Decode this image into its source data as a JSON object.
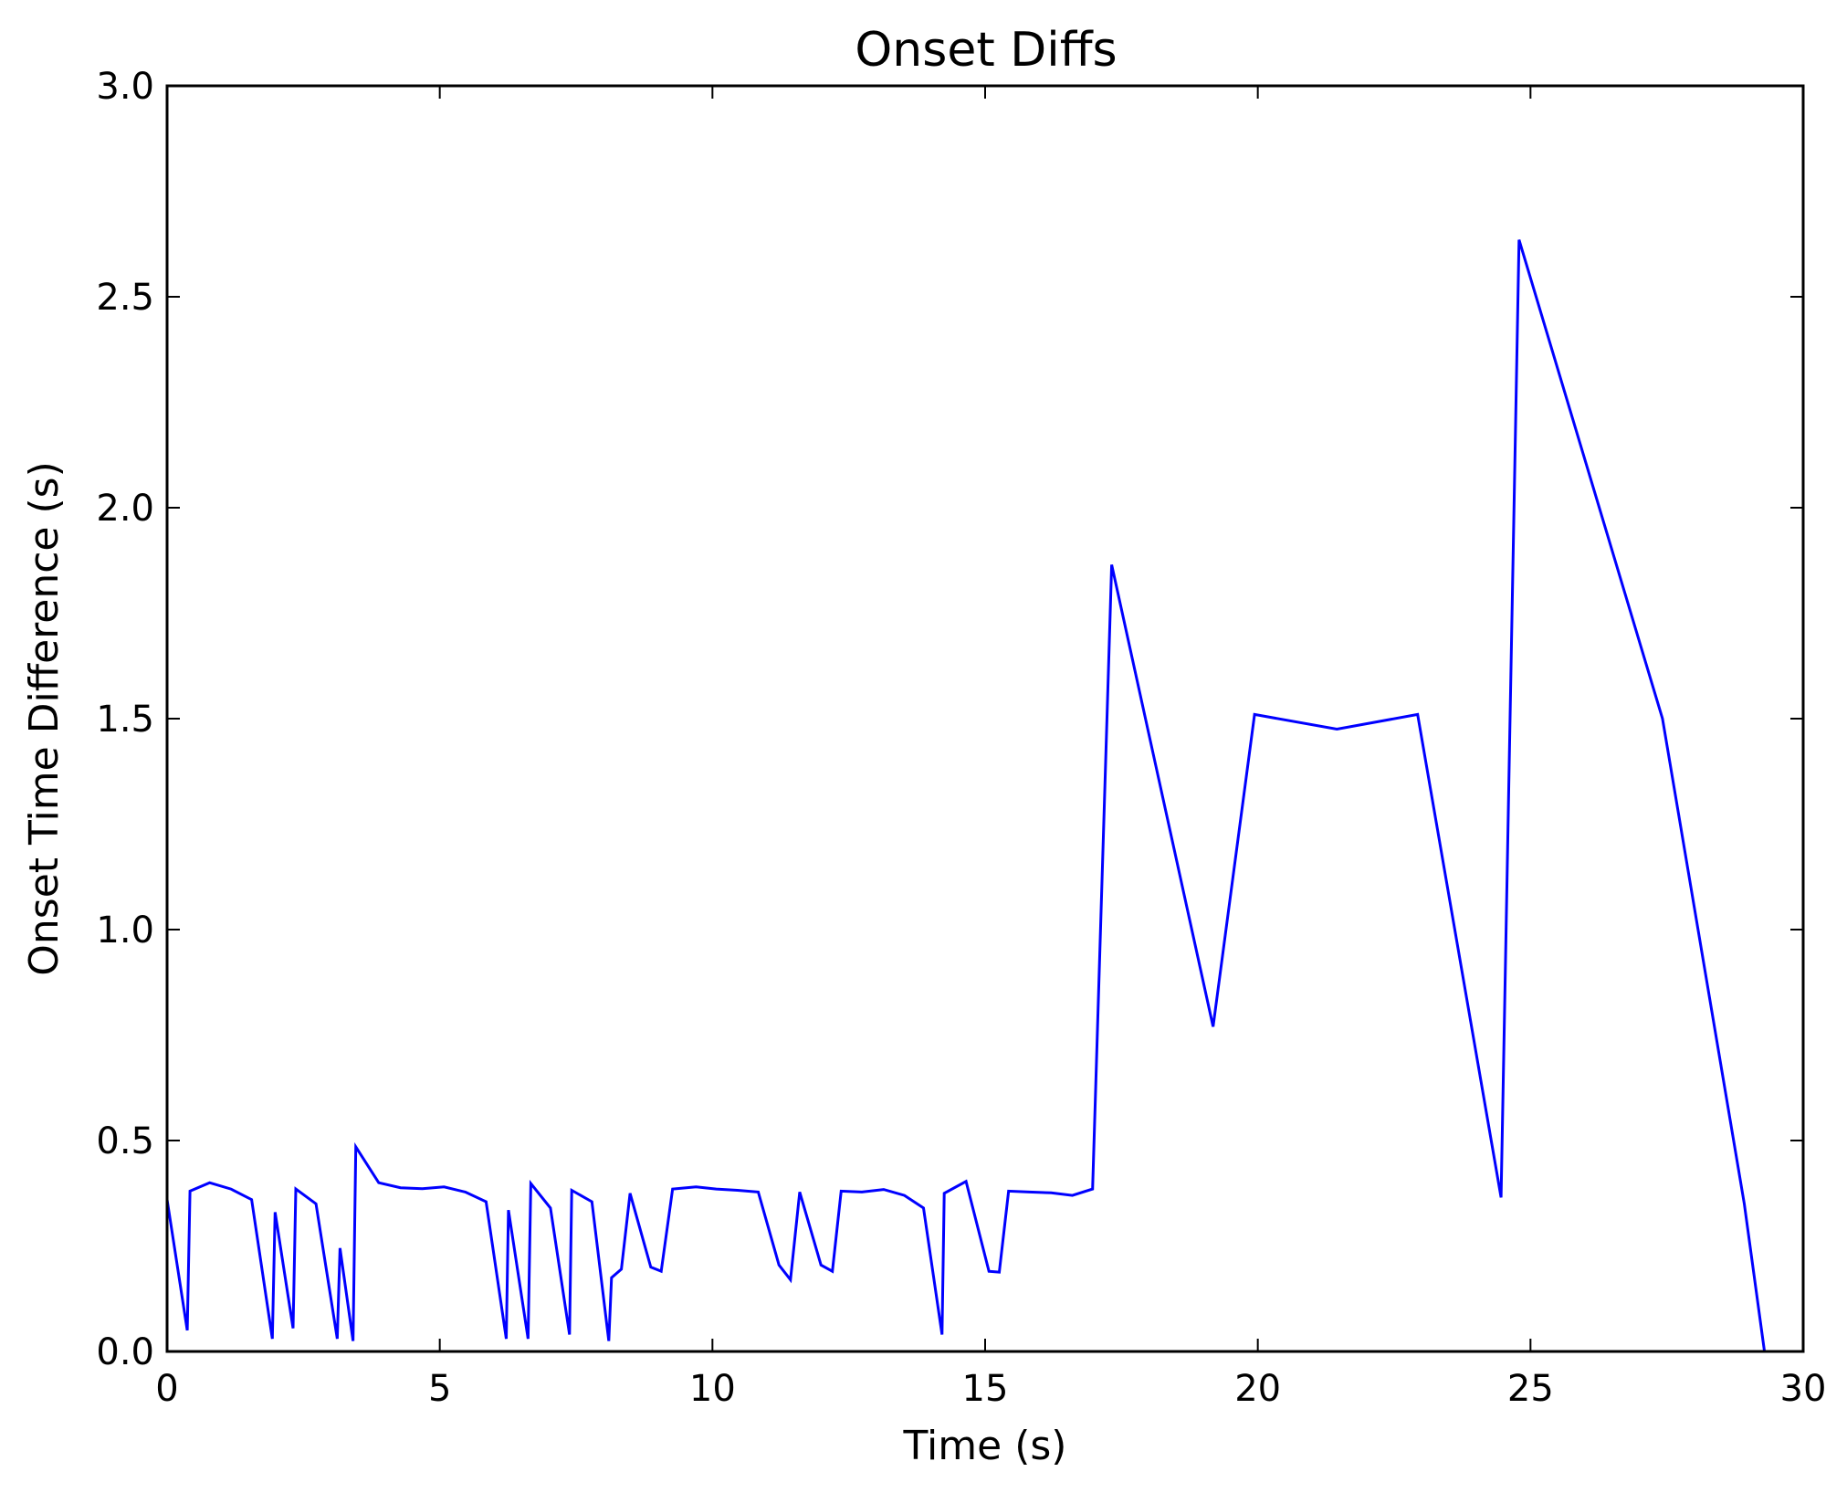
{
  "chart_data": {
    "type": "line",
    "title": "Onset Diffs",
    "xlabel": "Time (s)",
    "ylabel": "Onset Time Difference (s)",
    "xlim": [
      0,
      30
    ],
    "ylim": [
      0,
      3.0
    ],
    "x_ticks": [
      0,
      5,
      10,
      15,
      20,
      25,
      30
    ],
    "x_tick_labels": [
      "0",
      "5",
      "10",
      "15",
      "20",
      "25",
      "30"
    ],
    "y_ticks": [
      0,
      0.5,
      1.0,
      1.5,
      2.0,
      2.5,
      3.0
    ],
    "y_tick_labels": [
      "0.0",
      "0.5",
      "1.0",
      "1.5",
      "2.0",
      "2.5",
      "3.0"
    ],
    "grid": false,
    "legend": "none",
    "series": [
      {
        "color": "#0000ff",
        "x": [
          0.0,
          0.37,
          0.42,
          0.78,
          1.17,
          1.55,
          1.93,
          1.98,
          2.31,
          2.36,
          2.73,
          3.12,
          3.17,
          3.41,
          3.46,
          3.88,
          4.28,
          4.68,
          5.08,
          5.47,
          5.85,
          6.22,
          6.26,
          6.62,
          6.67,
          7.03,
          7.38,
          7.42,
          7.79,
          8.1,
          8.15,
          8.33,
          8.49,
          8.87,
          9.06,
          9.27,
          9.7,
          10.07,
          10.46,
          10.84,
          11.22,
          11.43,
          11.6,
          11.99,
          12.2,
          12.36,
          12.74,
          13.14,
          13.52,
          13.87,
          14.21,
          14.25,
          14.65,
          15.07,
          15.26,
          15.43,
          15.81,
          16.21,
          16.6,
          16.97,
          17.32,
          19.18,
          19.94,
          21.45,
          22.93,
          24.46,
          24.79,
          27.42,
          28.92,
          29.29
        ],
        "y": [
          0.36,
          0.05,
          0.38,
          0.4,
          0.385,
          0.36,
          0.03,
          0.33,
          0.055,
          0.385,
          0.35,
          0.03,
          0.245,
          0.025,
          0.485,
          0.4,
          0.388,
          0.386,
          0.39,
          0.378,
          0.355,
          0.03,
          0.335,
          0.03,
          0.398,
          0.34,
          0.04,
          0.382,
          0.355,
          0.025,
          0.175,
          0.195,
          0.375,
          0.2,
          0.19,
          0.385,
          0.39,
          0.385,
          0.382,
          0.378,
          0.205,
          0.17,
          0.378,
          0.205,
          0.19,
          0.38,
          0.378,
          0.384,
          0.37,
          0.34,
          0.04,
          0.375,
          0.403,
          0.19,
          0.188,
          0.38,
          0.378,
          0.376,
          0.37,
          0.385,
          1.865,
          0.77,
          1.51,
          1.475,
          1.51,
          0.365,
          2.635,
          1.5,
          0.35,
          0.0
        ]
      }
    ]
  }
}
